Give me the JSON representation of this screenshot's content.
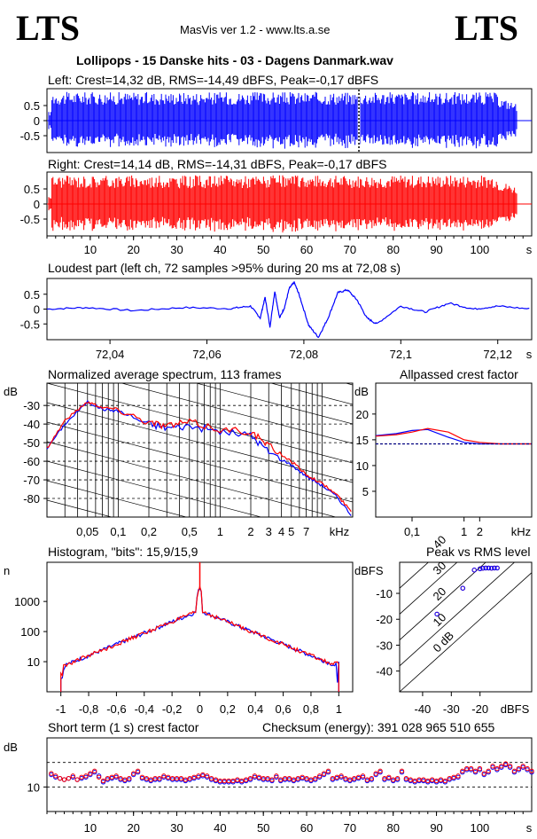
{
  "header": {
    "logo_left": "LTS",
    "logo_right": "LTS",
    "app": "MasVis ver 1.2 - www.lts.a.se",
    "file": "Lollipops - 15 Danske hits  - 03 - Dagens Danmark.wav"
  },
  "colors": {
    "left": "#0000ff",
    "right": "#ff0000",
    "dark": "#000000"
  },
  "chart_data": [
    {
      "id": "left",
      "type": "area",
      "title": "Left: Crest=14,32 dB, RMS=-14,49 dBFS, Peak=-0,17 dBFS",
      "yticks": [
        "0.5",
        "0",
        "-0.5"
      ],
      "ylim": [
        -1,
        1
      ],
      "xlim": [
        0,
        112
      ],
      "marker_x": 72.08
    },
    {
      "id": "right",
      "type": "area",
      "title": "Right: Crest=14,14 dB, RMS=-14,31 dBFS, Peak=-0,17 dBFS",
      "yticks": [
        "0.5",
        "0",
        "-0.5"
      ],
      "ylim": [
        -1,
        1
      ],
      "xlim": [
        0,
        112
      ],
      "xticks": [
        "10",
        "20",
        "30",
        "40",
        "50",
        "60",
        "70",
        "80",
        "90",
        "100"
      ],
      "xunit": "s"
    },
    {
      "id": "loudest",
      "type": "line",
      "title": "Loudest part (left  ch, 72 samples >95% during 20 ms at 72,08 s)",
      "yticks": [
        "0.5",
        "0",
        "-0.5"
      ],
      "ylim": [
        -1,
        1
      ],
      "xlim": [
        72.027,
        72.127
      ],
      "xticks": [
        "72,04",
        "72,06",
        "72,08",
        "72,1",
        "72,12"
      ],
      "xunit": "s",
      "x": [
        72.027,
        72.035,
        72.045,
        72.055,
        72.065,
        72.069,
        72.071,
        72.072,
        72.073,
        72.074,
        72.075,
        72.076,
        72.077,
        72.078,
        72.079,
        72.081,
        72.083,
        72.085,
        72.087,
        72.089,
        72.091,
        72.093,
        72.095,
        72.1,
        72.105,
        72.11,
        72.115,
        72.12,
        72.127
      ],
      "y": [
        0,
        0.05,
        -0.05,
        0.05,
        0.02,
        0.1,
        -0.3,
        0.4,
        -0.6,
        0.6,
        -0.3,
        0.05,
        0.7,
        0.9,
        0.5,
        -0.55,
        -0.95,
        -0.3,
        0.55,
        0.65,
        0.3,
        -0.3,
        -0.5,
        0.1,
        -0.1,
        0.2,
        0,
        0.1,
        0
      ]
    },
    {
      "id": "spectrum",
      "type": "line",
      "title": "Normalized average spectrum, 113 frames",
      "ylabel": "dB",
      "yticks": [
        "-30",
        "-40",
        "-50",
        "-60",
        "-70",
        "-80"
      ],
      "ylim": [
        -90,
        -18
      ],
      "xticks": [
        "0,05",
        "0,1",
        "0,2",
        "0,5",
        "1",
        "2",
        "3",
        "4",
        "5",
        "7",
        "kHz"
      ],
      "xscale": "log",
      "series": [
        {
          "color": "#0000ff",
          "x": [
            0.02,
            0.03,
            0.05,
            0.07,
            0.1,
            0.2,
            0.3,
            0.5,
            1,
            2,
            3,
            5,
            7,
            10,
            14,
            20
          ],
          "y": [
            -53,
            -40,
            -28,
            -32,
            -33,
            -40,
            -42,
            -41,
            -44,
            -46,
            -55,
            -62,
            -68,
            -73,
            -79,
            -90
          ]
        },
        {
          "color": "#ff0000",
          "x": [
            0.02,
            0.03,
            0.05,
            0.07,
            0.1,
            0.2,
            0.3,
            0.5,
            1,
            2,
            3,
            5,
            7,
            10,
            14,
            20
          ],
          "y": [
            -53,
            -38,
            -28,
            -31,
            -32,
            -39,
            -41,
            -39,
            -43,
            -44,
            -52,
            -60,
            -67,
            -72,
            -78,
            -88
          ]
        }
      ]
    },
    {
      "id": "allpass",
      "type": "line",
      "title": "Allpassed crest factor",
      "ylabel": "dB",
      "yticks": [
        "20",
        "15",
        "10",
        "5"
      ],
      "ylim": [
        0,
        26
      ],
      "xticks": [
        "0,1",
        "1",
        "2",
        "kHz"
      ],
      "xscale": "log",
      "series": [
        {
          "color": "#0000ff",
          "x": [
            0.02,
            0.05,
            0.1,
            0.2,
            0.5,
            1,
            2,
            5,
            20
          ],
          "y": [
            15.8,
            16.2,
            16.8,
            17,
            15.5,
            14.5,
            14.2,
            14.2,
            14.2
          ]
        },
        {
          "color": "#ff0000",
          "x": [
            0.02,
            0.05,
            0.1,
            0.2,
            0.5,
            1,
            2,
            5,
            20
          ],
          "y": [
            15.7,
            16,
            16.5,
            17.2,
            16.5,
            15,
            14.5,
            14.2,
            14.2
          ]
        },
        {
          "color": "#000080",
          "x": [
            0.02,
            20
          ],
          "y": [
            14.2,
            14.2
          ]
        }
      ]
    },
    {
      "id": "histogram",
      "type": "line",
      "title": "Histogram, \"bits\": 15,9/15,9",
      "ylabel": "n",
      "yscale": "log",
      "yticks": [
        "1000",
        "100",
        "10"
      ],
      "ylim": [
        1,
        20000
      ],
      "xticks": [
        "-1",
        "-0,8",
        "-0,6",
        "-0,4",
        "-0,2",
        "0",
        "0,2",
        "0,4",
        "0,6",
        "0,8",
        "1"
      ],
      "xlim": [
        -1.1,
        1.1
      ]
    },
    {
      "id": "peakrms",
      "type": "scatter",
      "title": "Peak vs RMS level",
      "ylabel": "dBFS",
      "yticks": [
        "-10",
        "-20",
        "-30",
        "-40"
      ],
      "ylim": [
        -48,
        2
      ],
      "xticks": [
        "-40",
        "-30",
        "-20",
        "dBFS"
      ],
      "xlim": [
        -48,
        -2
      ],
      "diag_labels": [
        "0 dB",
        "10",
        "20",
        "30",
        "40"
      ],
      "series": [
        {
          "color": "#ff0000",
          "x": [
            -35,
            -26,
            -22,
            -20,
            -19,
            -18,
            -17,
            -16,
            -15,
            -14
          ],
          "y": [
            -18,
            -8,
            -1,
            -0.5,
            -0.3,
            -0.2,
            -0.2,
            -0.3,
            -0.2,
            -0.2
          ]
        },
        {
          "color": "#0000ff",
          "x": [
            -35,
            -26,
            -22,
            -20,
            -19,
            -18,
            -17,
            -16,
            -15,
            -14
          ],
          "y": [
            -18,
            -8,
            -1,
            -0.5,
            -0.3,
            -0.2,
            -0.2,
            -0.3,
            -0.2,
            -0.2
          ]
        }
      ]
    },
    {
      "id": "crest",
      "type": "scatter",
      "title": "Short term (1 s) crest factor",
      "ylabel": "dB",
      "yticks": [
        "10"
      ],
      "ylim": [
        0,
        30
      ],
      "dashed_y": [
        10,
        20
      ],
      "xticks": [
        "10",
        "20",
        "30",
        "40",
        "50",
        "60",
        "70",
        "80",
        "90",
        "100"
      ],
      "xunit": "s",
      "xlim": [
        0,
        112
      ],
      "values_left": [
        15,
        14,
        13.5,
        13,
        13.5,
        14,
        13,
        13.5,
        14,
        15,
        16,
        14.5,
        12,
        13,
        13.5,
        14,
        13,
        12.5,
        13,
        15,
        16,
        13.5,
        13,
        12.5,
        13,
        13,
        14,
        13.5,
        13,
        13,
        13,
        12.5,
        13,
        13.5,
        14,
        14.5,
        14,
        13,
        12.5,
        12,
        12,
        12,
        12,
        12.5,
        12,
        12.5,
        13,
        14,
        13.5,
        13,
        13,
        12.5,
        14,
        12.5,
        13,
        13,
        12.5,
        13,
        13.5,
        13,
        12.5,
        13,
        14,
        15,
        16,
        13,
        13.5,
        14,
        13,
        12.5,
        13,
        13.5,
        14,
        12.5,
        13,
        15,
        16,
        13,
        13.5,
        12.5,
        13,
        16,
        13,
        12.5,
        12,
        12.5,
        12.5,
        12,
        12.5,
        12,
        12.5,
        12,
        13,
        13.5,
        14,
        16,
        17,
        17,
        16,
        17,
        15,
        16,
        18,
        17,
        18,
        19,
        18,
        16,
        17,
        18,
        17,
        16
      ],
      "values_right": [
        15.5,
        14.5,
        13.5,
        13,
        13.5,
        14.5,
        13,
        14,
        14.5,
        15.5,
        16.5,
        14,
        12.5,
        13.5,
        14,
        14.5,
        13.5,
        13,
        13.5,
        15.5,
        16.5,
        14,
        13.5,
        13,
        13.5,
        13.5,
        14.5,
        14,
        13.5,
        13.5,
        13.5,
        13,
        13.5,
        14,
        14.5,
        15,
        14.5,
        13.5,
        13,
        12.5,
        12.5,
        12.5,
        12.5,
        13,
        12.5,
        13,
        13.5,
        14.5,
        14,
        13.5,
        13.5,
        13,
        14.5,
        13,
        13.5,
        13.5,
        13,
        13.5,
        14,
        13.5,
        13,
        13.5,
        14.5,
        15.5,
        16.5,
        13.5,
        14,
        14.5,
        13.5,
        13,
        13.5,
        14,
        14.5,
        13,
        13.5,
        15.5,
        16.5,
        13.5,
        14,
        13,
        13.5,
        16.5,
        13.5,
        13,
        12.5,
        13,
        13,
        12.5,
        13,
        12.5,
        13,
        12.5,
        13.5,
        14,
        14.5,
        16.5,
        17.5,
        17.5,
        16.5,
        17.5,
        15.5,
        16.5,
        18.5,
        17.5,
        18.5,
        19.5,
        18.5,
        16.5,
        17.5,
        18.5,
        17.5,
        16.5
      ]
    }
  ],
  "checksum": "Checksum (energy):   391 028 965 510 655"
}
